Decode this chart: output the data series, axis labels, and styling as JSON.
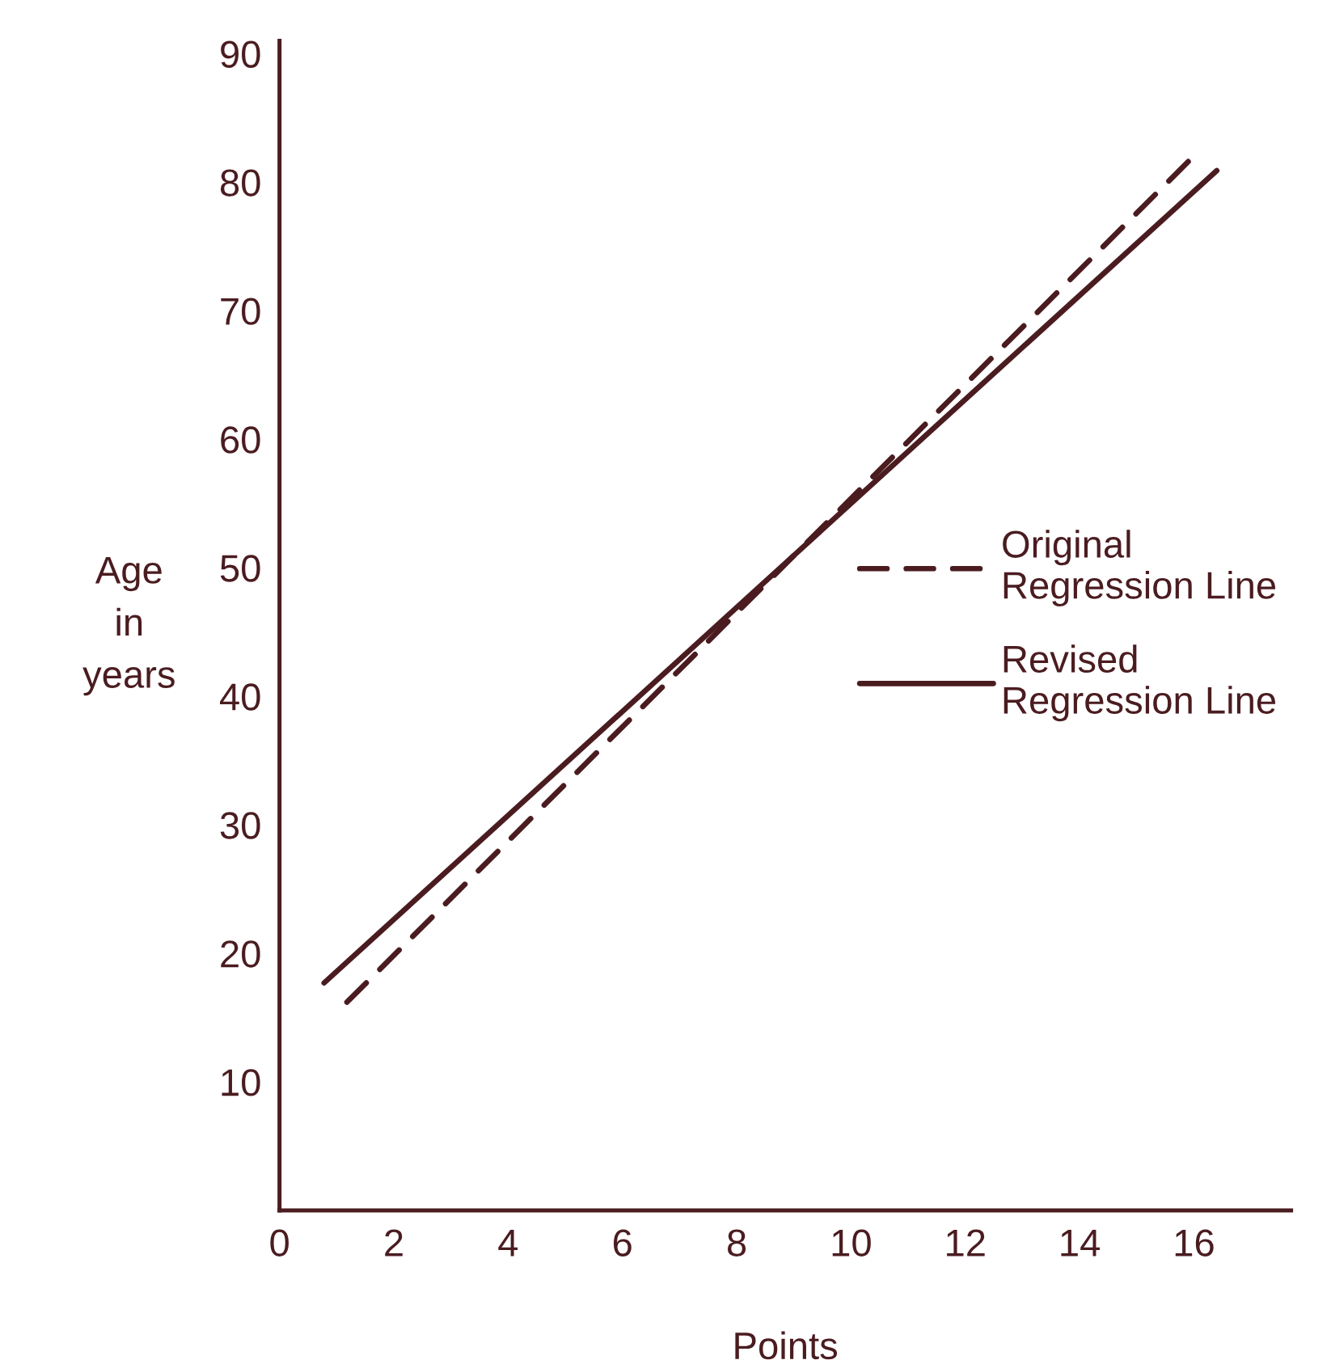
{
  "chart_data": {
    "type": "line",
    "xlabel": "Points",
    "ylabel": "Age\nin\nyears",
    "xlim": [
      0,
      17.7
    ],
    "ylim": [
      0,
      91
    ],
    "xticks": [
      0,
      2,
      4,
      6,
      8,
      10,
      12,
      14,
      16
    ],
    "yticks": [
      10,
      20,
      30,
      40,
      50,
      60,
      70,
      80,
      90
    ],
    "series": [
      {
        "name": "Original\nRegression Line",
        "color": "#4a1c20",
        "line_style": "dashed",
        "x": [
          1.18,
          15.9
        ],
        "values": [
          16.2,
          81.6
        ]
      },
      {
        "name": "Revised\nRegression Line",
        "color": "#4a1c20",
        "line_style": "solid",
        "x": [
          0.78,
          16.4
        ],
        "values": [
          17.7,
          80.9
        ]
      }
    ],
    "legend": "center right",
    "grid": false,
    "marker": "none"
  }
}
